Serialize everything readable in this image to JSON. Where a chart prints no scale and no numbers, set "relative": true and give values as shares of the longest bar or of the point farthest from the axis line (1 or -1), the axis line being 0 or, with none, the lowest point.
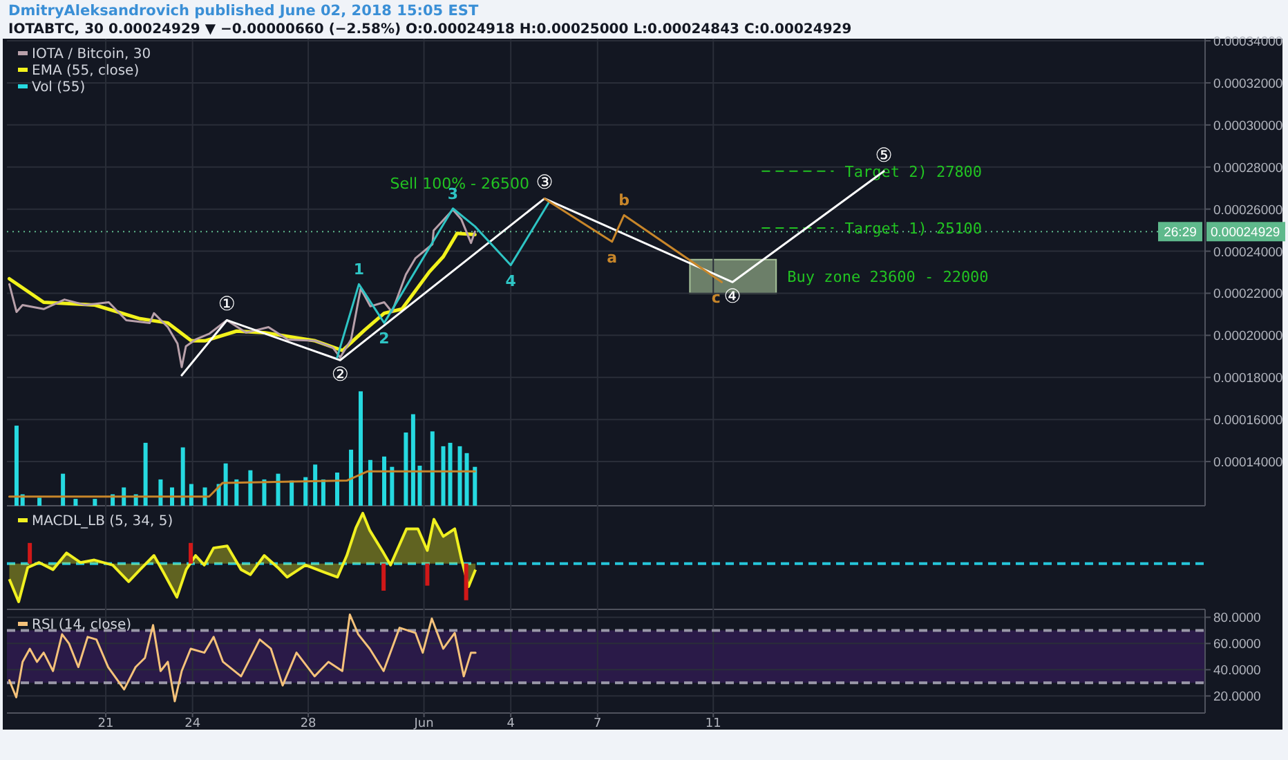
{
  "chart_data": [
    {
      "type": "line",
      "title": "DmitryAleksandrovich published June 02, 2018 15:05 EST",
      "subtitle": "IOTABTC, 30 0.00024929 ▼ −0.00000660 (−2.58%) O:0.00024918 H:0.00025000 L:0.00024843 C:0.00024929",
      "xlim": [
        "2018-05-17T14:00",
        "2018-06-28T00:00"
      ],
      "xticks": [
        {
          "value": "2018-05-21",
          "label": null
        },
        {
          "value": "2018-05-24",
          "label": null
        },
        {
          "value": "2018-05-28",
          "label": null
        },
        {
          "value": "2018-06-01",
          "label": null
        },
        {
          "value": "2018-06-04",
          "label": null
        },
        {
          "value": "2018-06-07",
          "label": null
        },
        {
          "value": "2018-06-11",
          "label": null
        }
      ],
      "ylim": [
        0.000119,
        0.000341
      ],
      "yticks": [
        {
          "value": 0.00014,
          "label": "0.00014000"
        },
        {
          "value": 0.00016,
          "label": "0.00016000"
        },
        {
          "value": 0.00018,
          "label": "0.00018000"
        },
        {
          "value": 0.0002,
          "label": "0.00020000"
        },
        {
          "value": 0.00022,
          "label": "0.00022000"
        },
        {
          "value": 0.00024,
          "label": "0.00024000"
        },
        {
          "value": 0.00026,
          "label": "0.00026000"
        },
        {
          "value": 0.00028,
          "label": "0.00028000"
        },
        {
          "value": 0.0003,
          "label": "0.00030000"
        },
        {
          "value": 0.00032,
          "label": "0.00032000"
        },
        {
          "value": 0.00034,
          "label": "0.00034000"
        }
      ],
      "grid": true,
      "legend": "top left",
      "tick_labels": "y",
      "series": [
        {
          "name": "IOTA / Bitcoin, 30",
          "color": "#b8a0aa",
          "x": [
            "2018-05-17T16:00",
            "2018-05-17T22:00",
            "2018-05-18T03:00",
            "2018-05-18T20:30",
            "2018-05-19T13:45",
            "2018-05-20T07:00",
            "2018-05-21T02:30",
            "2018-05-21T17:00",
            "2018-05-22T12:30",
            "2018-05-22T16:00",
            "2018-05-23T03:30",
            "2018-05-23T11:30",
            "2018-05-23T15:00",
            "2018-05-23T18:30",
            "2018-05-24T02:30",
            "2018-05-24T13:45",
            "2018-05-25T04:30",
            "2018-05-25T20:30",
            "2018-05-26T15:00",
            "2018-05-27T07:00",
            "2018-05-28T05:45",
            "2018-05-28T20:30",
            "2018-05-29T02:30",
            "2018-05-29T11:30",
            "2018-05-29T19:30",
            "2018-05-30T03:30",
            "2018-05-30T15:00",
            "2018-05-30T21:30",
            "2018-05-31T09:00",
            "2018-05-31T17:00",
            "2018-06-01T07:00",
            "2018-06-01T08:00",
            "2018-06-02T00:00",
            "2018-06-02T07:00",
            "2018-06-02T15:00",
            "2018-06-02T18:15"
          ],
          "values": [
            0.0002243,
            0.0002111,
            0.0002144,
            0.0002125,
            0.000217,
            0.0002144,
            0.0002157,
            0.0002072,
            0.0002059,
            0.0002105,
            0.0002039,
            0.0001961,
            0.0001849,
            0.0001948,
            0.000198,
            0.0002007,
            0.0002072,
            0.0002013,
            0.0002039,
            0.000198,
            0.0001974,
            0.0001941,
            0.0001895,
            0.000198,
            0.0002223,
            0.0002138,
            0.0002157,
            0.0002111,
            0.0002289,
            0.0002367,
            0.0002433,
            0.0002498,
            0.0002597,
            0.0002551,
            0.0002439,
            0.0002493
          ]
        },
        {
          "name": "EMA (55, close)",
          "color": "#f2f21c",
          "x": [
            "2018-05-17T16:00",
            "2018-05-18T20:30",
            "2018-05-20T15:00",
            "2018-05-22T04:30",
            "2018-05-23T03:30",
            "2018-05-23T23:00",
            "2018-05-24T10:15",
            "2018-05-25T12:30",
            "2018-05-26T11:30",
            "2018-05-28T05:45",
            "2018-05-29T04:30",
            "2018-05-29T23:00",
            "2018-05-30T15:00",
            "2018-05-31T05:45",
            "2018-06-01T04:30",
            "2018-06-01T16:00",
            "2018-06-02T03:30",
            "2018-06-02T18:15"
          ],
          "values": [
            0.0002269,
            0.0002157,
            0.0002144,
            0.0002079,
            0.0002059,
            0.0001974,
            0.0001974,
            0.000202,
            0.0002013,
            0.0001974,
            0.0001928,
            0.0002026,
            0.0002105,
            0.0002125,
            0.0002302,
            0.0002374,
            0.0002485,
            0.0002479
          ]
        },
        {
          "color": "#ffffff",
          "x": [
            "2018-05-23T15:00",
            "2018-05-25T04:30",
            "2018-05-29T02:30",
            "2018-06-05T04:00",
            "2018-06-11T16:00",
            "2018-06-16T21:30"
          ],
          "values": [
            0.000181,
            0.0002072,
            0.0001882,
            0.000265,
            0.0002253,
            0.000278
          ]
        },
        {
          "color": "#2ec4c4",
          "x": [
            "2018-05-29T00:00",
            "2018-05-29T18:00",
            "2018-05-30T15:00",
            "2018-06-02T00:00",
            "2018-06-02T18:15",
            "2018-06-04T00:00",
            "2018-06-05T08:00"
          ],
          "values": [
            0.0001895,
            0.0002243,
            0.0002059,
            0.0002603,
            0.0002518,
            0.0002334,
            0.0002636
          ]
        },
        {
          "color": "#c8862a",
          "x": [
            "2018-06-05T04:00",
            "2018-06-07T12:00",
            "2018-06-07T22:00",
            "2018-06-11T07:00"
          ],
          "values": [
            0.000265,
            0.0002445,
            0.0002571,
            0.0002253
          ]
        }
      ],
      "ref_lines": [
        {
          "axis": "y",
          "value": 0.00024929,
          "label": "0.00024929",
          "line_style": "dotted",
          "color": "#5fb98c"
        },
        {
          "axis": "y",
          "value": 0.000278,
          "label": "Target 2)  27800",
          "line_style": "dashed",
          "color": "#22c322"
        },
        {
          "axis": "y",
          "value": 0.000251,
          "label": "Target 1)  25100",
          "line_style": "dashed",
          "color": "#22c322"
        }
      ],
      "bands": [
        {
          "axis": "y",
          "from": 0.00022,
          "to": 0.000236,
          "label": "Buy zone 23600 - 22000",
          "color": "#a8c49a"
        }
      ],
      "annotations": [
        {
          "text": "Sell 100% - 26500",
          "x": "2018-06-05T04:00",
          "y": 0.000265
        },
        {
          "text": "①",
          "x": "2018-05-25T04:30",
          "y": 0.0002072
        },
        {
          "text": "②",
          "x": "2018-05-29T02:30",
          "y": 0.0001882
        },
        {
          "text": "③",
          "x": "2018-06-05T04:00",
          "y": 0.000265
        },
        {
          "text": "④",
          "x": "2018-06-11T16:00",
          "y": 0.0002253
        },
        {
          "text": "⑤",
          "x": "2018-06-16T21:30",
          "y": 0.000278
        },
        {
          "text": "1",
          "x": "2018-05-29T18:00",
          "y": 0.0002243
        },
        {
          "text": "2",
          "x": "2018-05-30T15:00",
          "y": 0.0002059
        },
        {
          "text": "3",
          "x": "2018-06-02T00:00",
          "y": 0.0002603
        },
        {
          "text": "4",
          "x": "2018-06-04T00:00",
          "y": 0.0002334
        },
        {
          "text": "a",
          "x": "2018-06-07T12:00",
          "y": 0.0002445
        },
        {
          "text": "b",
          "x": "2018-06-07T22:00",
          "y": 0.0002571
        },
        {
          "text": "c",
          "x": "2018-06-11T07:00",
          "y": 0.0002253
        },
        "26:29"
      ]
    },
    {
      "type": "bar",
      "relative": true,
      "legend": "top left",
      "tick_labels": false,
      "xlim": [
        "2018-05-17T14:00",
        "2018-06-28T00:00"
      ],
      "series": [
        {
          "name": "Vol (55)",
          "color": "#26d9e0",
          "x": [
            "2018-05-17T22:00",
            "2018-05-18T03:00",
            "2018-05-18T17:00",
            "2018-05-19T12:30",
            "2018-05-19T23:00",
            "2018-05-20T15:00",
            "2018-05-21T05:45",
            "2018-05-21T15:00",
            "2018-05-22T01:00",
            "2018-05-22T09:00",
            "2018-05-22T21:30",
            "2018-05-23T07:00",
            "2018-05-23T16:00",
            "2018-05-23T23:00",
            "2018-05-24T10:15",
            "2018-05-24T21:45",
            "2018-05-25T03:30",
            "2018-05-25T12:30",
            "2018-05-26T00:00",
            "2018-05-26T11:30",
            "2018-05-26T23:00",
            "2018-05-27T10:15",
            "2018-05-27T21:45",
            "2018-05-28T05:45",
            "2018-05-28T12:30",
            "2018-05-29T00:00",
            "2018-05-29T11:30",
            "2018-05-29T19:30",
            "2018-05-30T03:30",
            "2018-05-30T15:00",
            "2018-05-30T21:30",
            "2018-05-31T09:00",
            "2018-05-31T15:00",
            "2018-05-31T20:30",
            "2018-06-01T07:00",
            "2018-06-01T16:00",
            "2018-06-01T21:45",
            "2018-06-02T05:45",
            "2018-06-02T11:30",
            "2018-06-02T18:15"
          ],
          "values": [
            0.7,
            0.1,
            0.07,
            0.28,
            0.06,
            0.06,
            0.1,
            0.16,
            0.1,
            0.55,
            0.23,
            0.16,
            0.51,
            0.19,
            0.16,
            0.19,
            0.37,
            0.23,
            0.31,
            0.23,
            0.28,
            0.22,
            0.25,
            0.36,
            0.23,
            0.29,
            0.49,
            1,
            0.4,
            0.43,
            0.34,
            0.64,
            0.8,
            0.35,
            0.65,
            0.52,
            0.55,
            0.52,
            0.46,
            0.34
          ]
        },
        {
          "type": "line",
          "color": "#c8862a",
          "x": [
            "2018-05-17T16:00",
            "2018-05-24T13:45",
            "2018-05-25T01:00",
            "2018-05-29T08:00",
            "2018-05-30T01:00",
            "2018-06-02T18:15"
          ],
          "values": [
            0.08,
            0.08,
            0.2,
            0.22,
            0.3,
            0.3
          ]
        }
      ]
    },
    {
      "type": "area",
      "legend": "top left",
      "grid": true,
      "tick_labels": "y",
      "xlim": [
        "2018-05-17T14:00",
        "2018-06-28T00:00"
      ],
      "xticks": [
        {
          "value": "2018-05-21",
          "label": null
        },
        {
          "value": "2018-05-24",
          "label": null
        },
        {
          "value": "2018-05-28",
          "label": null
        },
        {
          "value": "2018-06-01",
          "label": null
        },
        {
          "value": "2018-06-04",
          "label": null
        },
        {
          "value": "2018-06-07",
          "label": null
        },
        {
          "value": "2018-06-11",
          "label": null
        }
      ],
      "relative": true,
      "ref_lines": [
        {
          "axis": "y",
          "value": 0,
          "line_style": "dashed",
          "color": "#26c6da"
        }
      ],
      "series": [
        {
          "name": "MACDL_LB (5, 34, 5)",
          "color": "#f0f020",
          "x": [
            "2018-05-17T16:00",
            "2018-05-17T23:45",
            "2018-05-18T07:15",
            "2018-05-18T16:45",
            "2018-05-19T04:15",
            "2018-05-19T15:30",
            "2018-05-20T03:00",
            "2018-05-20T14:30",
            "2018-05-21T05:45",
            "2018-05-21T19:00",
            "2018-05-22T04:30",
            "2018-05-22T16:00",
            "2018-05-22T23:45",
            "2018-05-23T11:00",
            "2018-05-23T18:45",
            "2018-05-24T02:30",
            "2018-05-24T09:45",
            "2018-05-24T17:30",
            "2018-05-25T04:45",
            "2018-05-25T16:15",
            "2018-05-26T00:00",
            "2018-05-26T11:30",
            "2018-05-26T22:45",
            "2018-05-27T06:30",
            "2018-05-27T21:45",
            "2018-05-28T13:00",
            "2018-05-29T00:15",
            "2018-05-29T08:00",
            "2018-05-29T15:30",
            "2018-05-29T21:15",
            "2018-05-30T03:00",
            "2018-05-30T14:30",
            "2018-05-30T20:15",
            "2018-05-31T09:30",
            "2018-05-31T19:00",
            "2018-06-01T02:45",
            "2018-06-01T08:15",
            "2018-06-01T16:00",
            "2018-06-02T01:30",
            "2018-06-02T07:15",
            "2018-06-02T13:00",
            "2018-06-02T18:45"
          ],
          "values": [
            -0.31,
            -0.76,
            -0.08,
            0.02,
            -0.12,
            0.21,
            0.02,
            0.07,
            -0.03,
            -0.36,
            -0.12,
            0.16,
            -0.17,
            -0.67,
            -0.12,
            0.16,
            -0.03,
            0.31,
            0.35,
            -0.12,
            -0.22,
            0.16,
            -0.08,
            -0.27,
            -0.03,
            -0.17,
            -0.27,
            0.16,
            0.71,
            1,
            0.66,
            0.21,
            -0.03,
            0.69,
            0.69,
            0.26,
            0.88,
            0.54,
            0.69,
            0.07,
            -0.46,
            -0.12
          ]
        },
        {
          "type": "bar",
          "color": "#d01818",
          "x": [
            "2018-05-18T09:00",
            "2018-05-23T22:30",
            "2018-05-30T14:30",
            "2018-06-01T02:45",
            "2018-06-02T11:00"
          ],
          "values": [
            0.41,
            0.41,
            -0.54,
            -0.44,
            -0.73
          ]
        }
      ]
    },
    {
      "type": "line",
      "legend": "top left",
      "grid": true,
      "xlim": [
        "2018-05-17T14:00",
        "2018-06-28T00:00"
      ],
      "xticks": [
        {
          "value": "2018-05-21",
          "label": "21"
        },
        {
          "value": "2018-05-24",
          "label": "24"
        },
        {
          "value": "2018-05-28",
          "label": "28"
        },
        {
          "value": "2018-06-01",
          "label": "Jun"
        },
        {
          "value": "2018-06-04",
          "label": "4"
        },
        {
          "value": "2018-06-07",
          "label": "7"
        },
        {
          "value": "2018-06-11",
          "label": "11"
        }
      ],
      "ylim": [
        7,
        86
      ],
      "yticks": [
        {
          "value": 20,
          "label": "20.0000"
        },
        {
          "value": 40,
          "label": "40.0000"
        },
        {
          "value": 60,
          "label": "60.0000"
        },
        {
          "value": 80,
          "label": "80.0000"
        }
      ],
      "ref_lines": [
        {
          "axis": "y",
          "value": 70,
          "line_style": "dashed",
          "color": "#9a98a8"
        },
        {
          "axis": "y",
          "value": 30,
          "line_style": "dashed",
          "color": "#9a98a8"
        }
      ],
      "bands": [
        {
          "axis": "y",
          "from": 30,
          "to": 70,
          "color": "#2a1a48"
        }
      ],
      "series": [
        {
          "name": "RSI (14, close)",
          "color": "#f5c27a",
          "x": [
            "2018-05-17T16:00",
            "2018-05-17T21:45",
            "2018-05-18T03:00",
            "2018-05-18T09:00",
            "2018-05-18T15:00",
            "2018-05-18T20:30",
            "2018-05-19T04:15",
            "2018-05-19T11:45",
            "2018-05-19T17:30",
            "2018-05-20T01:15",
            "2018-05-20T09:00",
            "2018-05-20T16:15",
            "2018-05-21T02:00",
            "2018-05-21T15:15",
            "2018-05-22T00:45",
            "2018-05-22T08:30",
            "2018-05-22T15:15",
            "2018-05-22T21:30",
            "2018-05-23T03:30",
            "2018-05-23T09:15",
            "2018-05-23T15:00",
            "2018-05-23T22:30",
            "2018-05-24T09:45",
            "2018-05-24T17:30",
            "2018-05-25T01:15",
            "2018-05-25T16:15",
            "2018-05-26T07:45",
            "2018-05-26T17:00",
            "2018-05-27T02:45",
            "2018-05-27T14:15",
            "2018-05-28T05:15",
            "2018-05-28T16:45",
            "2018-05-29T04:15",
            "2018-05-29T10:30",
            "2018-05-29T17:30",
            "2018-05-30T03:00",
            "2018-05-30T14:30",
            "2018-05-31T03:45",
            "2018-05-31T17:00",
            "2018-05-31T23:00",
            "2018-06-01T06:30",
            "2018-06-01T16:00",
            "2018-06-02T01:30",
            "2018-06-02T09:00",
            "2018-06-02T15:00",
            "2018-06-02T18:45"
          ],
          "values": [
            32,
            19,
            46,
            56,
            46,
            53,
            39,
            67,
            60,
            42,
            65,
            63,
            42,
            25,
            42,
            49,
            74,
            39,
            46,
            16,
            39,
            56,
            53,
            65,
            46,
            35,
            63,
            56,
            28,
            53,
            35,
            46,
            39,
            82,
            67,
            56,
            39,
            72,
            68,
            53,
            79,
            56,
            68,
            35,
            53,
            53
          ]
        }
      ]
    }
  ]
}
